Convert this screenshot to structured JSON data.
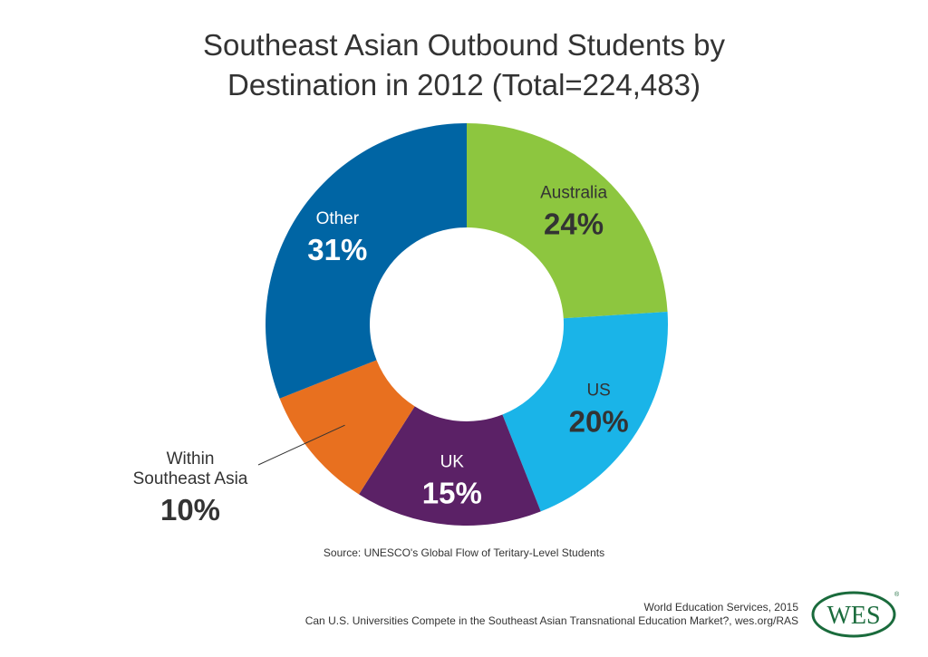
{
  "chart_data": {
    "type": "pie",
    "title_lines": [
      "Southeast Asian Outbound Students by",
      "Destination in 2012 (Total=224,483)"
    ],
    "slices": [
      {
        "label_lines": [
          "Australia"
        ],
        "value": 24,
        "value_label": "24%",
        "color": "#8dc63f",
        "label_color": "#333333"
      },
      {
        "label_lines": [
          "US"
        ],
        "value": 20,
        "value_label": "20%",
        "color": "#1ab4e8",
        "label_color": "#333333"
      },
      {
        "label_lines": [
          "UK"
        ],
        "value": 15,
        "value_label": "15%",
        "color": "#5b2166",
        "label_color": "#ffffff"
      },
      {
        "label_lines": [
          "Within",
          "Southeast Asia"
        ],
        "value": 10,
        "value_label": "10%",
        "color": "#e8701f",
        "label_color": "#333333",
        "callout": true
      },
      {
        "label_lines": [
          "Other"
        ],
        "value": 31,
        "value_label": "31%",
        "color": "#0065a4",
        "label_color": "#ffffff"
      }
    ],
    "donut": true,
    "source": "Source: UNESCO's Global Flow of Teritary-Level Students"
  },
  "footer": {
    "credit_lines": [
      "World Education Services, 2015",
      "Can U.S. Universities Compete in the Southeast Asian Transnational Education Market?, wes.org/RAS"
    ],
    "logo_text": "WES",
    "logo_color": "#1a6b3c"
  }
}
